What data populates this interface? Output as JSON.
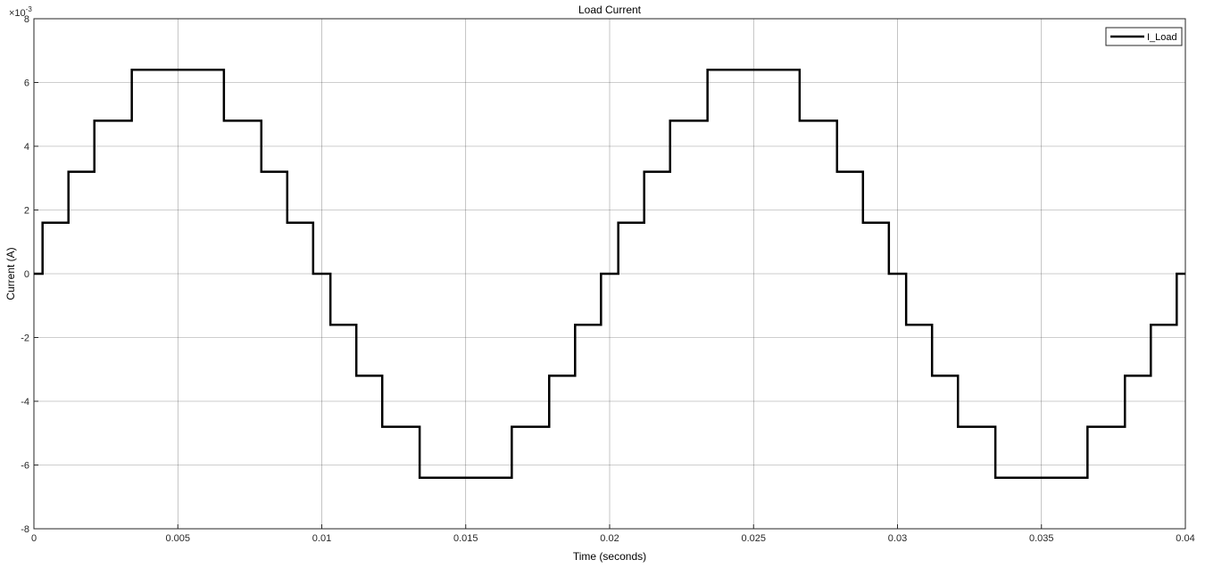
{
  "chart_data": {
    "type": "line",
    "title": "Load Current",
    "xlabel": "Time (seconds)",
    "ylabel": "Current (A)",
    "y_exponent_label": "×10",
    "y_exponent_value": "-3",
    "xlim": [
      0,
      0.04
    ],
    "ylim": [
      -0.008,
      0.008
    ],
    "x_ticks": [
      0,
      0.005,
      0.01,
      0.015,
      0.02,
      0.025,
      0.03,
      0.035,
      0.04
    ],
    "x_tick_labels": [
      "0",
      "0.005",
      "0.01",
      "0.015",
      "0.02",
      "0.025",
      "0.03",
      "0.035",
      "0.04"
    ],
    "y_ticks": [
      -0.008,
      -0.006,
      -0.004,
      -0.002,
      0,
      0.002,
      0.004,
      0.006,
      0.008
    ],
    "y_tick_labels": [
      "-8",
      "-6",
      "-4",
      "-2",
      "0",
      "2",
      "4",
      "6",
      "8"
    ],
    "grid": true,
    "legend_position": "top-right",
    "colors": {
      "line": "#000000",
      "grid": "#262626",
      "axes_bg": "#ffffff"
    },
    "series": [
      {
        "name": "I_Load",
        "step": true,
        "x": [
          0,
          0.0003,
          0.0012,
          0.0021,
          0.0034,
          0.0066,
          0.0079,
          0.0088,
          0.0097,
          0.0103,
          0.0112,
          0.0121,
          0.0134,
          0.0166,
          0.0179,
          0.0188,
          0.0197,
          0.0203,
          0.0212,
          0.0221,
          0.0234,
          0.0266,
          0.0279,
          0.0288,
          0.0297,
          0.0303,
          0.0312,
          0.0321,
          0.0334,
          0.0366,
          0.0379,
          0.0388,
          0.0397,
          0.04
        ],
        "y": [
          0,
          0.0016,
          0.0032,
          0.0048,
          0.0064,
          0.0048,
          0.0032,
          0.0016,
          0,
          -0.0016,
          -0.0032,
          -0.0048,
          -0.0064,
          -0.0048,
          -0.0032,
          -0.0016,
          0,
          0.0016,
          0.0032,
          0.0048,
          0.0064,
          0.0048,
          0.0032,
          0.0016,
          0,
          -0.0016,
          -0.0032,
          -0.0048,
          -0.0064,
          -0.0048,
          -0.0032,
          -0.0016,
          0,
          0
        ]
      }
    ]
  }
}
